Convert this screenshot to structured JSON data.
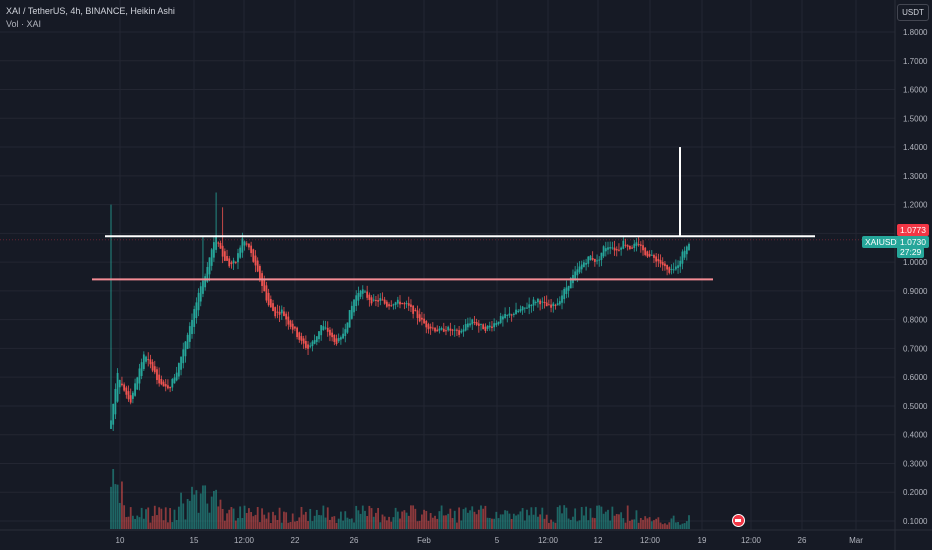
{
  "header": {
    "title": "XAI / TetherUS, 4h, BINANCE, Heikin Ashi",
    "indicator": "Vol · XAI"
  },
  "currency_button": "USDT",
  "colors": {
    "background": "#161a25",
    "up": "#26a69a",
    "down": "#ef5350",
    "level_white": "#ffffff",
    "level_pink": "#f48c95",
    "grid": "#232632",
    "axis_text": "#b2b5be"
  },
  "price_labels": {
    "high_line": "1.0773",
    "symbol": "XAIUSDT",
    "last_price": "1.0730",
    "countdown": "27:29"
  },
  "chart_data": {
    "type": "candlestick",
    "yaxis": {
      "ticks": [
        "1.8000",
        "1.7000",
        "1.6000",
        "1.5000",
        "1.4000",
        "1.3000",
        "1.2000",
        "1.1000",
        "1.0000",
        "0.9000",
        "0.8000",
        "0.7000",
        "0.6000",
        "0.5000",
        "0.4000",
        "0.3000",
        "0.2000",
        "0.1000"
      ],
      "range": [
        0.07,
        1.87
      ]
    },
    "xaxis": {
      "ticks": [
        "10",
        "15",
        "12:00",
        "22",
        "26",
        "Feb",
        "5",
        "12:00",
        "12",
        "12:00",
        "19",
        "12:00",
        "26",
        "Mar"
      ]
    },
    "levels": [
      {
        "name": "resistance",
        "price": 1.09,
        "color": "#ffffff"
      },
      {
        "name": "support",
        "price": 0.94,
        "color": "#f48c95"
      }
    ],
    "spike": {
      "low": 1.09,
      "high": 1.4
    },
    "series": [
      {
        "kind": "heikin-ashi-close",
        "points": [
          [
            0,
            0.45
          ],
          [
            3,
            0.62
          ],
          [
            6,
            0.55
          ],
          [
            9,
            0.52
          ],
          [
            12,
            0.6
          ],
          [
            15,
            0.68
          ],
          [
            18,
            0.64
          ],
          [
            21,
            0.6
          ],
          [
            24,
            0.56
          ],
          [
            27,
            0.57
          ],
          [
            30,
            0.62
          ],
          [
            33,
            0.7
          ],
          [
            36,
            0.78
          ],
          [
            39,
            0.86
          ],
          [
            42,
            0.93
          ],
          [
            45,
            1.02
          ],
          [
            48,
            1.1
          ],
          [
            51,
            1.02
          ],
          [
            54,
            0.99
          ],
          [
            57,
            1.0
          ],
          [
            60,
            1.08
          ],
          [
            63,
            1.05
          ],
          [
            66,
            0.98
          ],
          [
            69,
            0.92
          ],
          [
            72,
            0.85
          ],
          [
            75,
            0.82
          ],
          [
            78,
            0.83
          ],
          [
            81,
            0.79
          ],
          [
            84,
            0.76
          ],
          [
            87,
            0.72
          ],
          [
            90,
            0.7
          ],
          [
            93,
            0.73
          ],
          [
            96,
            0.78
          ],
          [
            99,
            0.76
          ],
          [
            102,
            0.72
          ],
          [
            105,
            0.73
          ],
          [
            108,
            0.8
          ],
          [
            111,
            0.87
          ],
          [
            114,
            0.91
          ],
          [
            117,
            0.88
          ],
          [
            120,
            0.86
          ],
          [
            123,
            0.87
          ],
          [
            126,
            0.85
          ],
          [
            129,
            0.86
          ],
          [
            132,
            0.86
          ],
          [
            135,
            0.85
          ],
          [
            138,
            0.83
          ],
          [
            141,
            0.8
          ],
          [
            144,
            0.78
          ],
          [
            147,
            0.77
          ],
          [
            150,
            0.76
          ],
          [
            153,
            0.77
          ],
          [
            156,
            0.76
          ],
          [
            159,
            0.75
          ],
          [
            162,
            0.78
          ],
          [
            165,
            0.8
          ],
          [
            168,
            0.78
          ],
          [
            171,
            0.77
          ],
          [
            174,
            0.78
          ],
          [
            177,
            0.8
          ],
          [
            180,
            0.81
          ],
          [
            183,
            0.82
          ],
          [
            186,
            0.83
          ],
          [
            189,
            0.84
          ],
          [
            192,
            0.86
          ],
          [
            195,
            0.87
          ],
          [
            198,
            0.85
          ],
          [
            201,
            0.84
          ],
          [
            204,
            0.86
          ],
          [
            207,
            0.9
          ],
          [
            210,
            0.94
          ],
          [
            213,
            0.97
          ],
          [
            216,
            1.0
          ],
          [
            219,
            1.02
          ],
          [
            222,
            1.0
          ],
          [
            225,
            1.05
          ],
          [
            228,
            1.06
          ],
          [
            231,
            1.04
          ],
          [
            234,
            1.07
          ],
          [
            237,
            1.05
          ],
          [
            240,
            1.06
          ],
          [
            243,
            1.04
          ],
          [
            246,
            1.02
          ],
          [
            249,
            1.01
          ],
          [
            252,
            0.99
          ],
          [
            255,
            0.96
          ],
          [
            258,
            0.98
          ],
          [
            261,
            1.03
          ],
          [
            264,
            1.073
          ]
        ]
      }
    ]
  }
}
